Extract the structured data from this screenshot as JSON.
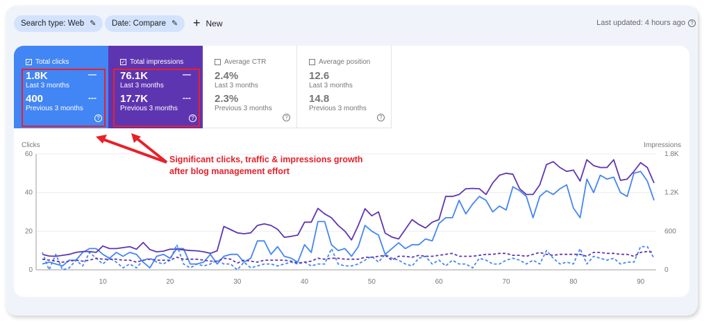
{
  "filters": {
    "search_type": "Search type: Web",
    "date": "Date: Compare",
    "new_label": "New"
  },
  "last_updated": "Last updated: 4 hours ago",
  "metrics": [
    {
      "label": "Total clicks",
      "checked": true,
      "current": "1.8K",
      "current_period": "Last 3 months",
      "previous": "400",
      "previous_period": "Previous 3 months",
      "color": "#4285f4"
    },
    {
      "label": "Total impressions",
      "checked": true,
      "current": "76.1K",
      "current_period": "Last 3 months",
      "previous": "17.7K",
      "previous_period": "Previous 3 months",
      "color": "#5e35b1"
    },
    {
      "label": "Average CTR",
      "checked": false,
      "current": "2.4%",
      "current_period": "Last 3 months",
      "previous": "2.3%",
      "previous_period": "Previous 3 months"
    },
    {
      "label": "Average position",
      "checked": false,
      "current": "12.6",
      "current_period": "Last 3 months",
      "previous": "14.8",
      "previous_period": "Previous 3 months"
    }
  ],
  "annotation": {
    "line1": "Significant clicks, traffic & impressions growth",
    "line2": "after blog management effort",
    "color": "#e8202a"
  },
  "chart_data": {
    "type": "line",
    "ylabel_left": "Clicks",
    "ylabel_right": "Impressions",
    "ylim_left": [
      0,
      60
    ],
    "ylim_right": [
      0,
      1800
    ],
    "yticks_left": [
      "0",
      "20",
      "40",
      "60"
    ],
    "yticks_right": [
      "0",
      "600",
      "1.2K",
      "1.8K"
    ],
    "xlim": [
      1,
      92
    ],
    "xticks": [
      "10",
      "20",
      "30",
      "40",
      "50",
      "60",
      "70",
      "80",
      "90"
    ],
    "grid": true,
    "series": [
      {
        "axis": "left",
        "style": "solid",
        "color": "#4285f4",
        "values": [
          3,
          4,
          3,
          2,
          5,
          5,
          9,
          11,
          11,
          8,
          6,
          9,
          7,
          9,
          8,
          4,
          1,
          7,
          8,
          6,
          11,
          11,
          3,
          3,
          4,
          8,
          3,
          7,
          8,
          8,
          4,
          6,
          15,
          15,
          8,
          12,
          7,
          6,
          4,
          13,
          9,
          25,
          25,
          13,
          10,
          11,
          7,
          12,
          23,
          20,
          18,
          8,
          11,
          14,
          11,
          13,
          13,
          16,
          15,
          24,
          27,
          27,
          36,
          29,
          34,
          38,
          36,
          30,
          33,
          31,
          43,
          41,
          38,
          27,
          38,
          41,
          39,
          42,
          44,
          32,
          27,
          47,
          40,
          49,
          47,
          48,
          40,
          38,
          50,
          51,
          46,
          36
        ]
      },
      {
        "axis": "right",
        "style": "solid",
        "color": "#5e35b1",
        "values": [
          240,
          215,
          210,
          225,
          240,
          270,
          285,
          285,
          270,
          370,
          330,
          330,
          345,
          360,
          320,
          425,
          315,
          280,
          290,
          320,
          320,
          310,
          300,
          295,
          280,
          255,
          295,
          675,
          625,
          575,
          560,
          575,
          690,
          715,
          690,
          630,
          505,
          520,
          540,
          740,
          740,
          955,
          870,
          810,
          690,
          600,
          465,
          690,
          950,
          840,
          900,
          570,
          510,
          480,
          630,
          780,
          705,
          650,
          740,
          780,
          1140,
          1140,
          1170,
          1260,
          1265,
          1260,
          1170,
          1350,
          1470,
          1500,
          1485,
          1260,
          1170,
          1170,
          1320,
          1635,
          1680,
          1590,
          1530,
          1550,
          1380,
          1710,
          1620,
          1590,
          1590,
          1710,
          1390,
          1410,
          1530,
          1665,
          1590,
          1350
        ]
      },
      {
        "axis": "left",
        "style": "dashed",
        "color": "#4285f4",
        "values": [
          9,
          0,
          8,
          0,
          1,
          5,
          2,
          9,
          6,
          3,
          6,
          4,
          1,
          3,
          1,
          5,
          6,
          4,
          3,
          5,
          13,
          3,
          1,
          3,
          2,
          3,
          5,
          3,
          3,
          0,
          4,
          1,
          2,
          3,
          3,
          2,
          3,
          4,
          3,
          4,
          2,
          3,
          3,
          11,
          3,
          2,
          2,
          3,
          5,
          7,
          4,
          8,
          6,
          5,
          3,
          2,
          6,
          7,
          3,
          5,
          2,
          5,
          3,
          3,
          1,
          6,
          5,
          3,
          3,
          5,
          6,
          5,
          3,
          5,
          3,
          10,
          6,
          3,
          4,
          3,
          11,
          3,
          7,
          6,
          5,
          6,
          3,
          4,
          4,
          12,
          12,
          6
        ]
      },
      {
        "axis": "right",
        "style": "dashed",
        "color": "#5e35b1",
        "values": [
          165,
          150,
          135,
          120,
          135,
          150,
          135,
          150,
          180,
          165,
          165,
          165,
          150,
          150,
          120,
          150,
          165,
          150,
          150,
          150,
          195,
          165,
          165,
          165,
          150,
          135,
          135,
          180,
          165,
          105,
          150,
          135,
          120,
          150,
          150,
          150,
          150,
          135,
          105,
          120,
          135,
          180,
          165,
          180,
          180,
          165,
          165,
          165,
          195,
          195,
          210,
          225,
          150,
          210,
          210,
          195,
          225,
          210,
          210,
          225,
          240,
          255,
          210,
          210,
          210,
          225,
          240,
          240,
          255,
          255,
          225,
          225,
          210,
          240,
          270,
          240,
          225,
          240,
          240,
          240,
          240,
          210,
          270,
          270,
          255,
          255,
          240,
          240,
          210,
          270,
          285,
          270
        ]
      }
    ]
  }
}
